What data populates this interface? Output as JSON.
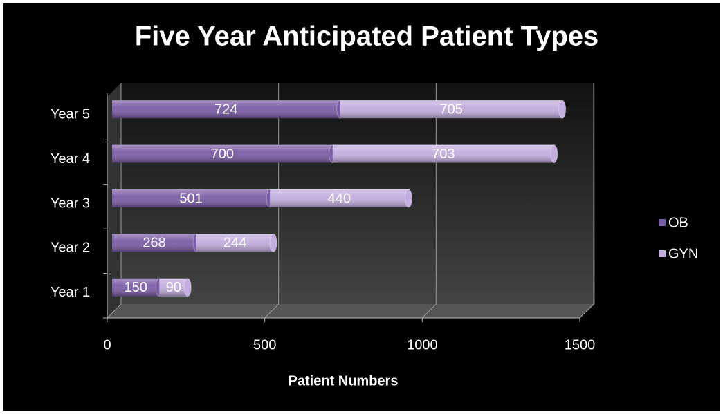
{
  "chart_data": {
    "type": "bar",
    "stacked": true,
    "orientation": "horizontal",
    "title": "Five Year Anticipated Patient Types",
    "x_label": "Patient Numbers",
    "categories": [
      "Year 1",
      "Year 2",
      "Year 3",
      "Year 4",
      "Year 5"
    ],
    "series": [
      {
        "name": "OB",
        "color": "#7a5ca6",
        "values": [
          150,
          268,
          501,
          700,
          724
        ]
      },
      {
        "name": "GYN",
        "color": "#c3aedf",
        "values": [
          90,
          244,
          440,
          703,
          705
        ]
      }
    ],
    "xlim": [
      0,
      1500
    ],
    "xticks": [
      0,
      500,
      1000,
      1500
    ],
    "grid": true,
    "legend": "right"
  }
}
